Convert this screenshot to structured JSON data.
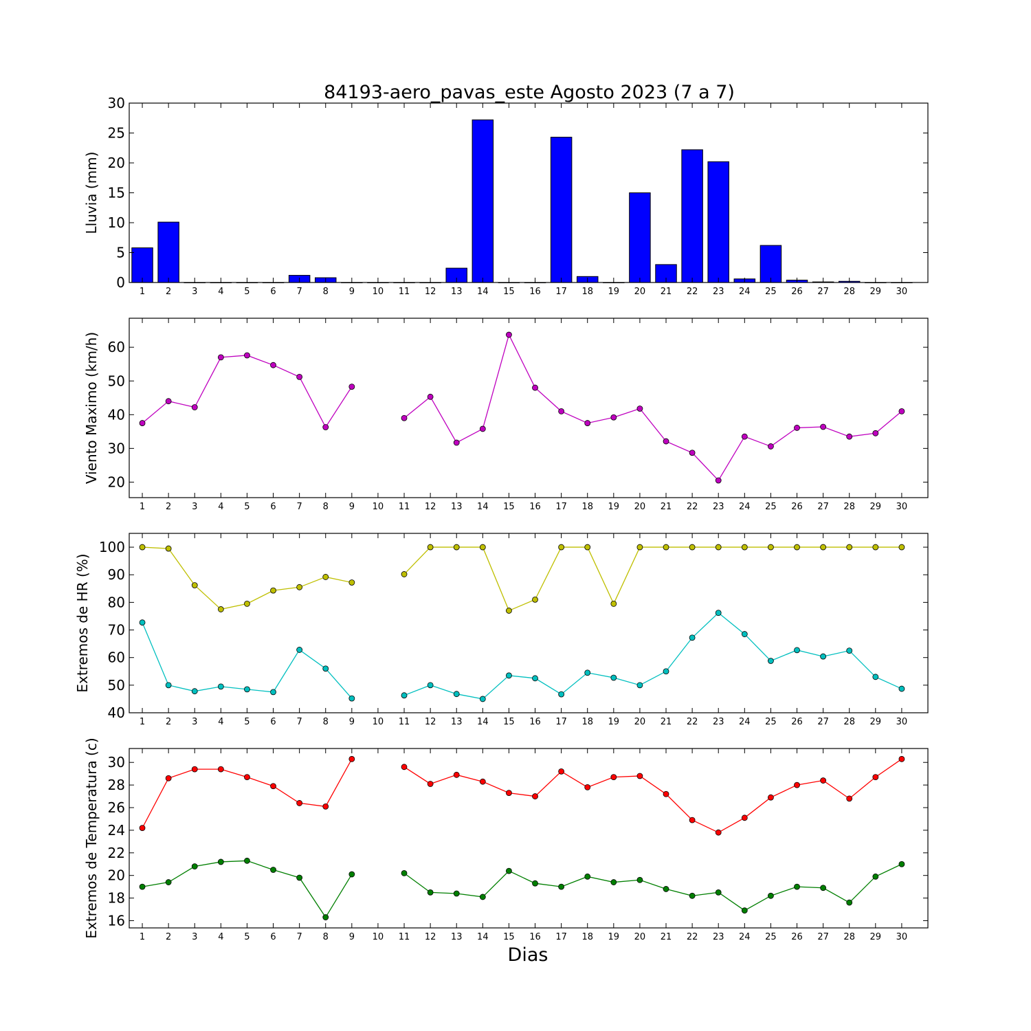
{
  "title": "84193-aero_pavas_este Agosto 2023  (7 a 7)",
  "xlabel": "Dias",
  "chart_data": [
    {
      "type": "bar",
      "ylabel": "Lluvia (mm)",
      "ylim": [
        0,
        30
      ],
      "yticks": [
        0,
        5,
        10,
        15,
        20,
        25,
        30
      ],
      "categories": [
        "1",
        "2",
        "3",
        "4",
        "5",
        "6",
        "7",
        "8",
        "9",
        "10",
        "11",
        "12",
        "13",
        "14",
        "15",
        "16",
        "17",
        "18",
        "19",
        "20",
        "21",
        "22",
        "23",
        "24",
        "25",
        "26",
        "27",
        "28",
        "29",
        "30"
      ],
      "series": [
        {
          "color": "#0000ff",
          "values": [
            5.8,
            10.1,
            0,
            0,
            0,
            0,
            1.2,
            0.8,
            0,
            0,
            0,
            0,
            2.4,
            27.2,
            0,
            0,
            24.3,
            1.0,
            0,
            15.0,
            3.0,
            22.2,
            20.2,
            0.6,
            6.2,
            0.4,
            0.1,
            0.2,
            0,
            0
          ]
        }
      ]
    },
    {
      "type": "line",
      "ylabel": "Viento Maximo (km/h)",
      "ylim": [
        15.4,
        68.6
      ],
      "yticks": [
        20,
        30,
        40,
        50,
        60
      ],
      "categories": [
        "1",
        "2",
        "3",
        "4",
        "5",
        "6",
        "7",
        "8",
        "9",
        "10",
        "11",
        "12",
        "13",
        "14",
        "15",
        "16",
        "17",
        "18",
        "19",
        "20",
        "21",
        "22",
        "23",
        "24",
        "25",
        "26",
        "27",
        "28",
        "29",
        "30"
      ],
      "series": [
        {
          "color": "#bf00bf",
          "values": [
            37.5,
            44.0,
            42.2,
            57.0,
            57.6,
            54.7,
            51.2,
            36.3,
            48.3,
            null,
            39.0,
            45.3,
            31.7,
            35.8,
            63.7,
            48.0,
            41.0,
            37.5,
            39.2,
            41.8,
            32.1,
            28.7,
            20.5,
            33.5,
            30.6,
            36.1,
            36.4,
            33.5,
            34.5,
            41.0
          ]
        }
      ]
    },
    {
      "type": "line",
      "ylabel": "Extremos de HR (%)",
      "ylim": [
        40,
        105
      ],
      "yticks": [
        40,
        50,
        60,
        70,
        80,
        90,
        100
      ],
      "categories": [
        "1",
        "2",
        "3",
        "4",
        "5",
        "6",
        "7",
        "8",
        "9",
        "10",
        "11",
        "12",
        "13",
        "14",
        "15",
        "16",
        "17",
        "18",
        "19",
        "20",
        "21",
        "22",
        "23",
        "24",
        "25",
        "26",
        "27",
        "28",
        "29",
        "30"
      ],
      "series": [
        {
          "color": "#bfbf00",
          "values": [
            100,
            99.5,
            86.2,
            77.5,
            79.5,
            84.3,
            85.5,
            89.2,
            87.2,
            null,
            90.2,
            100,
            100,
            100,
            77.0,
            81.0,
            100,
            100,
            79.5,
            100,
            100,
            100,
            100,
            100,
            100,
            100,
            100,
            100,
            100,
            100
          ]
        },
        {
          "color": "#00bfbf",
          "values": [
            72.7,
            50.0,
            47.8,
            49.5,
            48.5,
            47.5,
            62.8,
            56.0,
            45.2,
            null,
            46.3,
            50.0,
            46.8,
            45.0,
            53.5,
            52.5,
            46.7,
            54.5,
            52.7,
            50.0,
            55.0,
            67.2,
            76.2,
            68.5,
            58.8,
            62.7,
            60.4,
            62.5,
            53.0,
            48.7
          ]
        }
      ]
    },
    {
      "type": "line",
      "ylabel": "Extremos de Temperatura (c)",
      "ylim": [
        15.36,
        31.23
      ],
      "yticks": [
        16,
        18,
        20,
        22,
        24,
        26,
        28,
        30
      ],
      "categories": [
        "1",
        "2",
        "3",
        "4",
        "5",
        "6",
        "7",
        "8",
        "9",
        "10",
        "11",
        "12",
        "13",
        "14",
        "15",
        "16",
        "17",
        "18",
        "19",
        "20",
        "21",
        "22",
        "23",
        "24",
        "25",
        "26",
        "27",
        "28",
        "29",
        "30"
      ],
      "series": [
        {
          "color": "#ff0000",
          "values": [
            24.2,
            28.6,
            29.4,
            29.4,
            28.7,
            27.9,
            26.4,
            26.1,
            30.3,
            null,
            29.6,
            28.1,
            28.9,
            28.3,
            27.3,
            27.0,
            29.2,
            27.8,
            28.7,
            28.8,
            27.2,
            24.9,
            23.8,
            25.1,
            26.9,
            28.0,
            28.4,
            26.8,
            28.7,
            30.3
          ]
        },
        {
          "color": "#007f00",
          "values": [
            19.0,
            19.4,
            20.8,
            21.2,
            21.3,
            20.5,
            19.8,
            16.3,
            20.1,
            null,
            20.2,
            18.5,
            18.4,
            18.1,
            20.4,
            19.3,
            19.0,
            19.9,
            19.4,
            19.6,
            18.8,
            18.2,
            18.5,
            16.9,
            18.2,
            19.0,
            18.9,
            17.6,
            19.9,
            21.0
          ]
        }
      ]
    }
  ]
}
